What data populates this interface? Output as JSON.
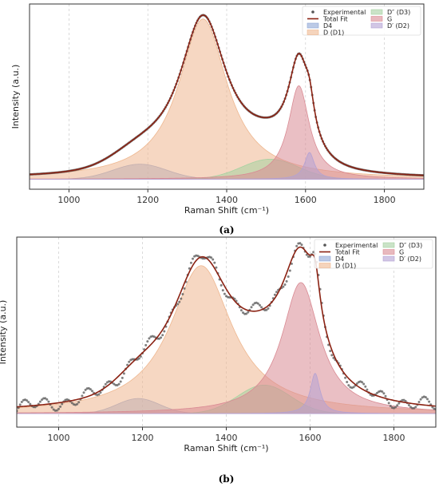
{
  "colors": {
    "experimental": "#555555",
    "total_fit": "#8b2213",
    "D4": "#8fa6d6",
    "D1": "#eeb78f",
    "D3": "#a6d1a1",
    "G": "#d98a93",
    "D2": "#b4a2d3"
  },
  "chart_data": [
    {
      "type": "line",
      "panel": "(a)",
      "xlabel": "Raman Shift (cm⁻¹)",
      "ylabel": "Intensity (a.u.)",
      "xlim": [
        900,
        1900
      ],
      "ylim": [
        -0.06,
        1.05
      ],
      "xticks": [
        1000,
        1200,
        1400,
        1600,
        1800
      ],
      "grid": "vertical dashed",
      "legend": {
        "placement": "top-right",
        "columns": 2,
        "entries": [
          "Experimental",
          "Total Fit",
          "D4",
          "D (D1)",
          "D″ (D3)",
          "G",
          "D′ (D2)"
        ]
      },
      "series": [
        {
          "name": "Experimental",
          "kind": "markers",
          "source": "Total Fit",
          "noise": 0.0
        },
        {
          "name": "Total Fit",
          "kind": "line",
          "components": [
            "D4",
            "D (D1)",
            "D″ (D3)",
            "G",
            "D′ (D2)"
          ]
        },
        {
          "name": "D4",
          "kind": "area",
          "shape": "gaussian",
          "center": 1180,
          "height": 0.09,
          "width": 160
        },
        {
          "name": "D (D1)",
          "kind": "area",
          "shape": "lorentzian",
          "center": 1340,
          "height": 0.96,
          "width": 150
        },
        {
          "name": "D″ (D3)",
          "kind": "area",
          "shape": "gaussian",
          "center": 1510,
          "height": 0.12,
          "width": 170
        },
        {
          "name": "G",
          "kind": "area",
          "shape": "lorentzian",
          "center": 1583,
          "height": 0.56,
          "width": 65
        },
        {
          "name": "D′ (D2)",
          "kind": "area",
          "shape": "lorentzian",
          "center": 1610,
          "height": 0.16,
          "width": 30
        }
      ]
    },
    {
      "type": "line",
      "panel": "(b)",
      "xlabel": "Raman Shift (cm⁻¹)",
      "ylabel": "Intensity (a.u.)",
      "xlim": [
        900,
        1900
      ],
      "ylim": [
        -0.08,
        1.05
      ],
      "xticks": [
        1000,
        1200,
        1400,
        1600,
        1800
      ],
      "grid": "vertical dashed",
      "legend": {
        "placement": "top-right",
        "columns": 2,
        "entries": [
          "Experimental",
          "Total Fit",
          "D4",
          "D (D1)",
          "D″ (D3)",
          "G",
          "D′ (D2)"
        ]
      },
      "series": [
        {
          "name": "Experimental",
          "kind": "markers",
          "source": "Total Fit",
          "noise": 0.05
        },
        {
          "name": "Total Fit",
          "kind": "line",
          "components": [
            "D4",
            "D (D1)",
            "D″ (D3)",
            "G",
            "D′ (D2)"
          ]
        },
        {
          "name": "D4",
          "kind": "area",
          "shape": "gaussian",
          "center": 1190,
          "height": 0.09,
          "width": 120
        },
        {
          "name": "D (D1)",
          "kind": "area",
          "shape": "lorentzian",
          "center": 1340,
          "height": 0.88,
          "width": 180
        },
        {
          "name": "D″ (D3)",
          "kind": "area",
          "shape": "gaussian",
          "center": 1490,
          "height": 0.17,
          "width": 150
        },
        {
          "name": "G",
          "kind": "area",
          "shape": "lorentzian",
          "center": 1578,
          "height": 0.78,
          "width": 110
        },
        {
          "name": "D′ (D2)",
          "kind": "area",
          "shape": "lorentzian",
          "center": 1612,
          "height": 0.24,
          "width": 28
        }
      ]
    }
  ]
}
